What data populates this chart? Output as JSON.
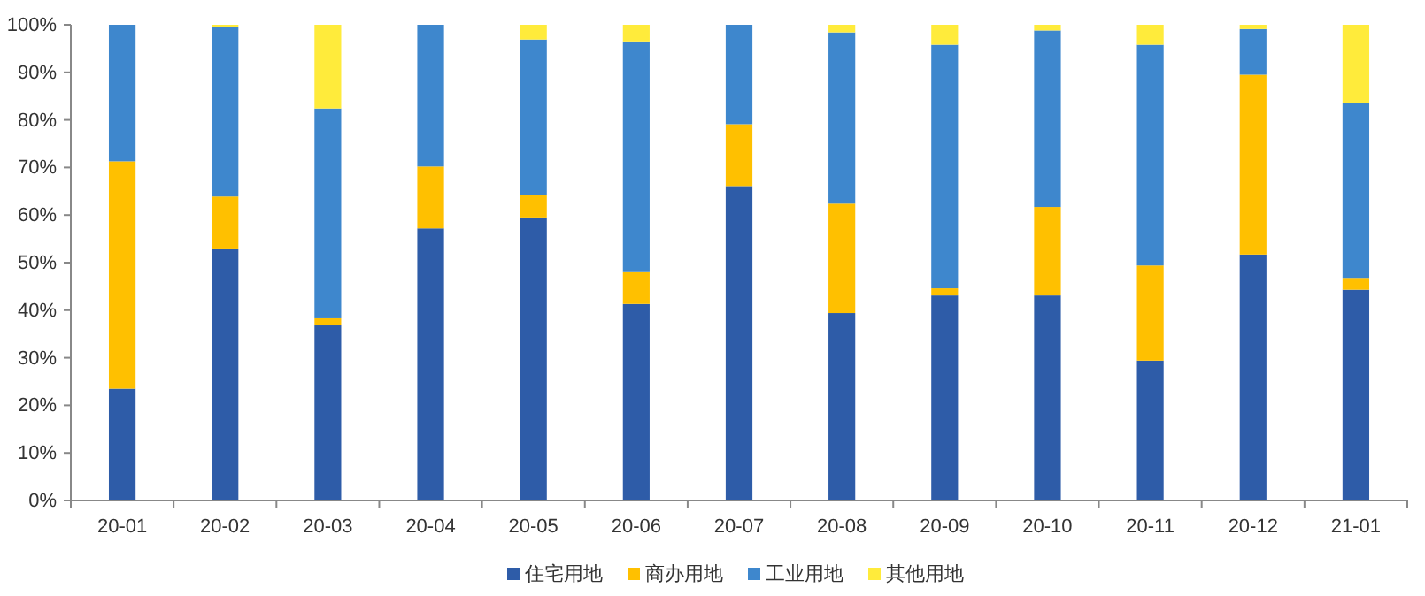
{
  "chart_data": {
    "type": "bar",
    "stacked": true,
    "categories": [
      "20-01",
      "20-02",
      "20-03",
      "20-04",
      "20-05",
      "20-06",
      "20-07",
      "20-08",
      "20-09",
      "20-10",
      "20-11",
      "20-12",
      "21-01"
    ],
    "series": [
      {
        "name": "住宅用地",
        "color": "#2e5ca8",
        "values": [
          23.5,
          52.8,
          36.8,
          57.2,
          59.5,
          41.3,
          66.1,
          39.4,
          43.1,
          43.1,
          29.4,
          51.7,
          44.3
        ]
      },
      {
        "name": "商办用地",
        "color": "#ffc000",
        "values": [
          47.8,
          11.1,
          1.5,
          13.0,
          4.8,
          6.7,
          13.0,
          23.0,
          1.5,
          18.6,
          20.0,
          37.8,
          2.5
        ]
      },
      {
        "name": "工业用地",
        "color": "#3e87cd",
        "values": [
          28.7,
          35.7,
          44.1,
          29.8,
          32.6,
          48.5,
          20.9,
          36.0,
          51.2,
          37.1,
          46.4,
          9.6,
          36.8
        ]
      },
      {
        "name": "其他用地",
        "color": "#ffeb3b",
        "values": [
          0,
          0.4,
          17.6,
          0,
          3.1,
          3.5,
          0,
          1.6,
          4.2,
          1.2,
          4.2,
          0.9,
          16.4
        ]
      }
    ],
    "ylim": [
      0,
      100
    ],
    "yticks": [
      {
        "value": 0,
        "label": "0%"
      },
      {
        "value": 10,
        "label": "10%"
      },
      {
        "value": 20,
        "label": "20%"
      },
      {
        "value": 30,
        "label": "30%"
      },
      {
        "value": 40,
        "label": "40%"
      },
      {
        "value": 50,
        "label": "50%"
      },
      {
        "value": 60,
        "label": "60%"
      },
      {
        "value": 70,
        "label": "70%"
      },
      {
        "value": 80,
        "label": "80%"
      },
      {
        "value": 90,
        "label": "90%"
      },
      {
        "value": 100,
        "label": "100%"
      }
    ],
    "grid": false,
    "legend": "bottom"
  }
}
